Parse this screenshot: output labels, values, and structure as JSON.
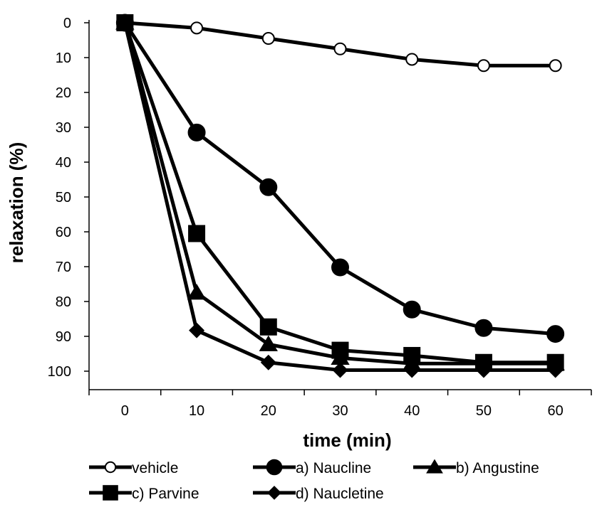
{
  "chart_data": {
    "type": "line",
    "title": "",
    "xlabel": "time (min)",
    "ylabel": "relaxation (%)",
    "x": [
      0,
      10,
      20,
      30,
      40,
      50,
      60
    ],
    "xticks": [
      "0",
      "10",
      "20",
      "30",
      "40",
      "50",
      "60"
    ],
    "yticks": [
      "0",
      "10",
      "20",
      "30",
      "40",
      "50",
      "60",
      "70",
      "80",
      "90",
      "100"
    ],
    "xlim": [
      -5,
      65
    ],
    "ylim": [
      0,
      105
    ],
    "y_inverted": true,
    "grid": false,
    "legend_position": "bottom",
    "series": [
      {
        "name": "vehicle",
        "marker": "circle-open",
        "values": [
          0,
          1.5,
          4.5,
          7.5,
          10.5,
          12.3,
          12.3
        ]
      },
      {
        "name": "a) Naucline",
        "marker": "circle",
        "values": [
          0,
          31.5,
          47.2,
          70.2,
          82.3,
          87.6,
          89.3
        ]
      },
      {
        "name": "b) Angustine",
        "marker": "triangle",
        "values": [
          0,
          77.5,
          92.3,
          96.2,
          97.8,
          97.8,
          97.8
        ]
      },
      {
        "name": "c) Parvine",
        "marker": "square",
        "values": [
          0,
          60.5,
          87.3,
          94.0,
          95.5,
          97.5,
          97.5
        ]
      },
      {
        "name": "d) Naucletine",
        "marker": "diamond",
        "values": [
          0,
          88.3,
          97.5,
          99.7,
          99.7,
          99.7,
          99.7
        ]
      }
    ]
  }
}
